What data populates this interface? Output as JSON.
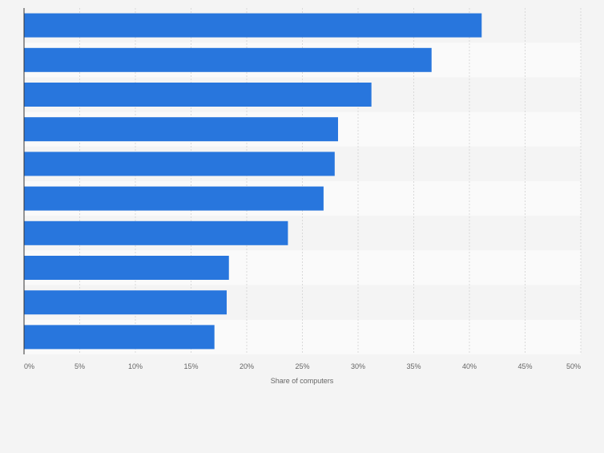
{
  "chart_data": {
    "type": "bar",
    "orientation": "horizontal",
    "categories": [
      "",
      "",
      "",
      "",
      "",
      "",
      "",
      "",
      "",
      ""
    ],
    "values": [
      41.1,
      36.6,
      31.2,
      28.2,
      27.9,
      26.9,
      23.7,
      18.4,
      18.2,
      17.1
    ],
    "xlabel": "Share of computers",
    "xlim": [
      0,
      50
    ],
    "xticks": [
      "0%",
      "5%",
      "10%",
      "15%",
      "20%",
      "25%",
      "30%",
      "35%",
      "40%",
      "45%",
      "50%"
    ],
    "tick_values": [
      0,
      5,
      10,
      15,
      20,
      25,
      30,
      35,
      40,
      45,
      50
    ],
    "grid": true,
    "colors": {
      "bar": "#2876dd",
      "band_dark": "#f4f4f4",
      "band_light": "#fafafa",
      "grid": "#d9d9d9",
      "axis": "#333333",
      "tick_text": "#666666"
    }
  }
}
